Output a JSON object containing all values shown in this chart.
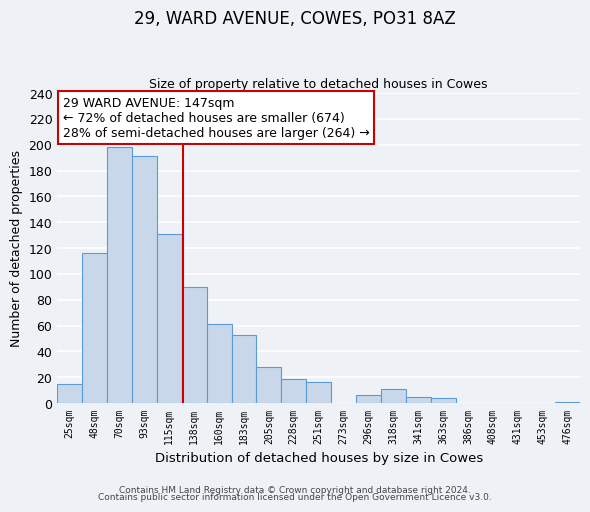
{
  "title": "29, WARD AVENUE, COWES, PO31 8AZ",
  "subtitle": "Size of property relative to detached houses in Cowes",
  "xlabel": "Distribution of detached houses by size in Cowes",
  "ylabel": "Number of detached properties",
  "bar_labels": [
    "25sqm",
    "48sqm",
    "70sqm",
    "93sqm",
    "115sqm",
    "138sqm",
    "160sqm",
    "183sqm",
    "205sqm",
    "228sqm",
    "251sqm",
    "273sqm",
    "296sqm",
    "318sqm",
    "341sqm",
    "363sqm",
    "386sqm",
    "408sqm",
    "431sqm",
    "453sqm",
    "476sqm"
  ],
  "bar_values": [
    15,
    116,
    198,
    191,
    131,
    90,
    61,
    53,
    28,
    19,
    16,
    0,
    6,
    11,
    5,
    4,
    0,
    0,
    0,
    0,
    1
  ],
  "bar_color": "#c8d8ea",
  "bar_edge_color": "#5b9bd5",
  "ylim": [
    0,
    240
  ],
  "yticks": [
    0,
    20,
    40,
    60,
    80,
    100,
    120,
    140,
    160,
    180,
    200,
    220,
    240
  ],
  "property_line_x": 4.55,
  "property_line_color": "#cc0000",
  "annotation_title": "29 WARD AVENUE: 147sqm",
  "annotation_line1": "← 72% of detached houses are smaller (674)",
  "annotation_line2": "28% of semi-detached houses are larger (264) →",
  "annotation_box_color": "#cc0000",
  "footer_line1": "Contains HM Land Registry data © Crown copyright and database right 2024.",
  "footer_line2": "Contains public sector information licensed under the Open Government Licence v3.0.",
  "background_color": "#eef2f7",
  "grid_color": "#d8e0ea"
}
